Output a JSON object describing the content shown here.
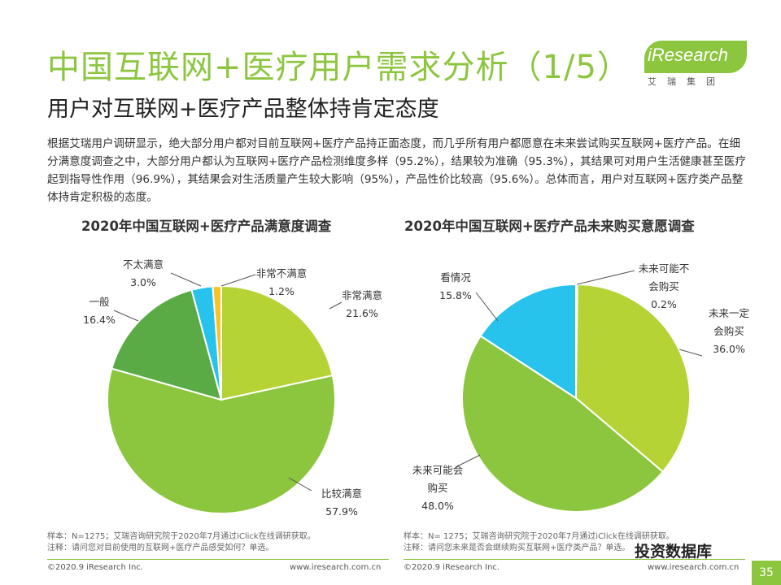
{
  "header": {
    "title": "中国互联网+医疗用户需求分析（1/5）",
    "subtitle": "用户对互联网+医疗产品整体持肯定态度",
    "logo_text": "iResearch",
    "logo_sub": "艾瑞集团"
  },
  "description": "根据艾瑞用户调研显示，绝大部分用户都对目前互联网+医疗产品持正面态度，而几乎所有用户都愿意在未来尝试购买互联网+医疗产品。在细分满意度调查之中，大部分用户都认为互联网+医疗产品检测维度多样（95.2%），结果较为准确（95.3%），其结果可对用户生活健康甚至医疗起到指导性作用（96.9%），其结果会对生活质量产生较大影响（95%），产品性价比较高（95.6%）。总体而言，用户对互联网+医疗类产品整体持肯定积极的态度。",
  "chart_data": [
    {
      "type": "pie",
      "title": "2020年中国互联网+医疗产品满意度调查",
      "slices": [
        {
          "label": "非常满意",
          "value": 21.6,
          "value_text": "21.6%",
          "color": "#b5d334"
        },
        {
          "label": "比较满意",
          "value": 57.9,
          "value_text": "57.9%",
          "color": "#8cc63f"
        },
        {
          "label": "一般",
          "value": 16.4,
          "value_text": "16.4%",
          "color": "#5aab46"
        },
        {
          "label": "不太满意",
          "value": 3.0,
          "value_text": "3.0%",
          "color": "#27c3ec"
        },
        {
          "label": "非常不满意",
          "value": 1.2,
          "value_text": "1.2%",
          "color": "#f7c325"
        }
      ]
    },
    {
      "type": "pie",
      "title": "2020年中国互联网+医疗产品未来购买意愿调查",
      "slices": [
        {
          "label": "未来可能不会购买",
          "value": 0.2,
          "value_text": "0.2%",
          "color": "#f7c325"
        },
        {
          "label": "未来一定会购买",
          "value": 36.0,
          "value_text": "36.0%",
          "color": "#b5d334"
        },
        {
          "label": "未来可能会购买",
          "value": 48.0,
          "value_text": "48.0%",
          "color": "#8cc63f"
        },
        {
          "label": "看情况",
          "value": 15.8,
          "value_text": "15.8%",
          "color": "#27c3ec"
        }
      ]
    }
  ],
  "footnotes": {
    "left_sample": "样本：N=1275；艾瑞咨询研究院于2020年7月通过iClick在线调研获取。",
    "left_note": "注释：请问您对目前使用的互联网+医疗产品感受如何？单选。",
    "right_sample": "样本：N= 1275；艾瑞咨询研究院于2020年7月通过iClick在线调研获取。",
    "right_note": "注释：请问您未来是否会继续购买互联网+医疗类产品？单选。"
  },
  "footer": {
    "left_copyright": "©2020.9 iResearch Inc.",
    "left_site": "www.iresearch.com.cn",
    "right_copyright": "©2020.9 iResearch Inc.",
    "right_site": "www.iresearch.com.cn",
    "page_number": "35",
    "watermark": "投资数据库"
  }
}
